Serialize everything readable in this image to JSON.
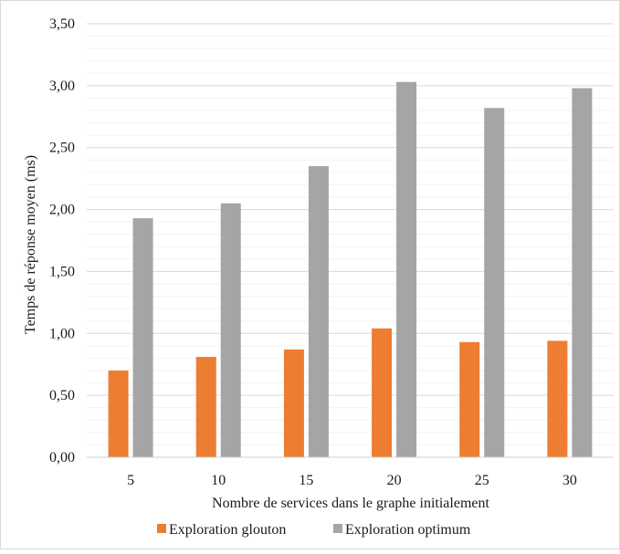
{
  "chart_data": {
    "type": "bar",
    "title": "",
    "xlabel": "Nombre de services dans le graphe initialement",
    "ylabel": "Temps de réponse moyen (ms)",
    "categories": [
      "5",
      "10",
      "15",
      "20",
      "25",
      "30"
    ],
    "ylim": [
      0,
      3.5
    ],
    "yticks": [
      "0,00",
      "0,50",
      "1,00",
      "1,50",
      "2,00",
      "2,50",
      "3,00",
      "3,50"
    ],
    "grid": true,
    "legend_position": "bottom",
    "series": [
      {
        "name": "Exploration glouton",
        "color": "#ed7d31",
        "values": [
          0.7,
          0.81,
          0.87,
          1.04,
          0.93,
          0.94
        ]
      },
      {
        "name": "Exploration optimum",
        "color": "#a5a5a5",
        "values": [
          1.93,
          2.05,
          2.35,
          3.03,
          2.82,
          2.98
        ]
      }
    ]
  }
}
